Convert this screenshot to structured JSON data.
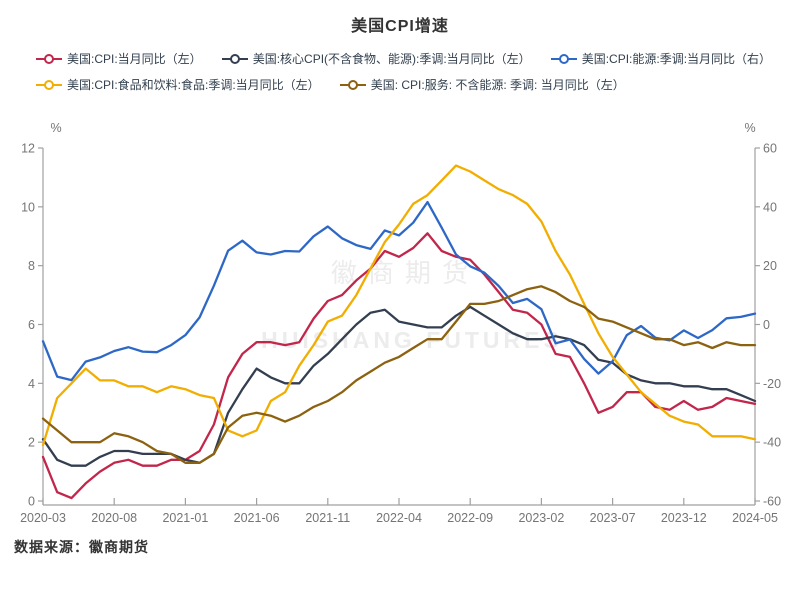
{
  "title": "美国CPI增速",
  "footer": {
    "source_label": "数据来源：徽商期货"
  },
  "watermark": {
    "line1": "徽商期货",
    "line2": "HUISHANG FUTURES"
  },
  "chart_data": {
    "type": "line",
    "title": "美国CPI增速",
    "grid": false,
    "legend_position": "top",
    "x": {
      "categories": [
        "2020-03",
        "2020-04",
        "2020-05",
        "2020-06",
        "2020-07",
        "2020-08",
        "2020-09",
        "2020-10",
        "2020-11",
        "2020-12",
        "2021-01",
        "2021-02",
        "2021-03",
        "2021-04",
        "2021-05",
        "2021-06",
        "2021-07",
        "2021-08",
        "2021-09",
        "2021-10",
        "2021-11",
        "2021-12",
        "2022-01",
        "2022-02",
        "2022-03",
        "2022-04",
        "2022-05",
        "2022-06",
        "2022-07",
        "2022-08",
        "2022-09",
        "2022-10",
        "2022-11",
        "2022-12",
        "2023-01",
        "2023-02",
        "2023-03",
        "2023-04",
        "2023-05",
        "2023-06",
        "2023-07",
        "2023-08",
        "2023-09",
        "2023-10",
        "2023-11",
        "2023-12",
        "2024-01",
        "2024-02",
        "2024-03",
        "2024-04",
        "2024-05"
      ],
      "tick_indices": [
        0,
        5,
        10,
        15,
        20,
        25,
        30,
        35,
        40,
        45,
        50
      ]
    },
    "left_axis": {
      "unit": "%",
      "lim": [
        0,
        12
      ],
      "ticks": [
        0,
        2,
        4,
        6,
        8,
        10,
        12
      ]
    },
    "right_axis": {
      "unit": "%",
      "lim": [
        -60,
        60
      ],
      "ticks": [
        -60,
        -40,
        -20,
        0,
        20,
        40,
        60
      ]
    },
    "series": [
      {
        "name": "美国:CPI:当月同比（左）",
        "axis": "left",
        "color": "#C2264B",
        "values": [
          1.5,
          0.3,
          0.1,
          0.6,
          1.0,
          1.3,
          1.4,
          1.2,
          1.2,
          1.4,
          1.4,
          1.7,
          2.6,
          4.2,
          5.0,
          5.4,
          5.4,
          5.3,
          5.4,
          6.2,
          6.8,
          7.0,
          7.5,
          7.9,
          8.5,
          8.3,
          8.6,
          9.1,
          8.5,
          8.3,
          8.2,
          7.7,
          7.1,
          6.5,
          6.4,
          6.0,
          5.0,
          4.9,
          4.0,
          3.0,
          3.2,
          3.7,
          3.7,
          3.2,
          3.1,
          3.4,
          3.1,
          3.2,
          3.5,
          3.4,
          3.3
        ]
      },
      {
        "name": "美国:核心CPI(不含食物、能源):季调:当月同比（左）",
        "axis": "left",
        "color": "#333F50",
        "values": [
          2.1,
          1.4,
          1.2,
          1.2,
          1.5,
          1.7,
          1.7,
          1.6,
          1.6,
          1.6,
          1.4,
          1.3,
          1.6,
          3.0,
          3.8,
          4.5,
          4.2,
          4.0,
          4.0,
          4.6,
          5.0,
          5.5,
          6.0,
          6.4,
          6.5,
          6.1,
          6.0,
          5.9,
          5.9,
          6.3,
          6.6,
          6.3,
          6.0,
          5.7,
          5.5,
          5.5,
          5.6,
          5.5,
          5.3,
          4.8,
          4.7,
          4.3,
          4.1,
          4.0,
          4.0,
          3.9,
          3.9,
          3.8,
          3.8,
          3.6,
          3.4
        ]
      },
      {
        "name": "美国:CPI:能源:季调:当月同比（右）",
        "axis": "right",
        "color": "#2E68C7",
        "values": [
          -5.7,
          -17.7,
          -18.9,
          -12.6,
          -11.2,
          -9.0,
          -7.7,
          -9.2,
          -9.4,
          -7.0,
          -3.6,
          2.4,
          13.2,
          25.1,
          28.5,
          24.5,
          23.8,
          25.0,
          24.8,
          30.0,
          33.3,
          29.3,
          27.0,
          25.7,
          32.0,
          30.3,
          34.6,
          41.6,
          32.9,
          23.8,
          19.8,
          17.6,
          13.1,
          7.3,
          8.7,
          5.2,
          -6.4,
          -5.1,
          -11.7,
          -16.7,
          -12.5,
          -3.6,
          -0.5,
          -4.5,
          -5.4,
          -2.0,
          -4.6,
          -1.9,
          2.1,
          2.6,
          3.7
        ]
      },
      {
        "name": "美国:CPI:食品和饮料:食品:季调:当月同比（左）",
        "axis": "left",
        "color": "#F2AE00",
        "values": [
          1.9,
          3.5,
          4.0,
          4.5,
          4.1,
          4.1,
          3.9,
          3.9,
          3.7,
          3.9,
          3.8,
          3.6,
          3.5,
          2.4,
          2.2,
          2.4,
          3.4,
          3.7,
          4.6,
          5.3,
          6.1,
          6.3,
          7.0,
          7.9,
          8.8,
          9.4,
          10.1,
          10.4,
          10.9,
          11.4,
          11.2,
          10.9,
          10.6,
          10.4,
          10.1,
          9.5,
          8.5,
          7.7,
          6.7,
          5.7,
          4.9,
          4.3,
          3.7,
          3.3,
          2.9,
          2.7,
          2.6,
          2.2,
          2.2,
          2.2,
          2.1
        ]
      },
      {
        "name": "美国: CPI:服务: 不含能源: 季调: 当月同比（左）",
        "axis": "left",
        "color": "#8C6210",
        "values": [
          2.8,
          2.4,
          2.0,
          2.0,
          2.0,
          2.3,
          2.2,
          2.0,
          1.7,
          1.6,
          1.3,
          1.3,
          1.6,
          2.5,
          2.9,
          3.0,
          2.9,
          2.7,
          2.9,
          3.2,
          3.4,
          3.7,
          4.1,
          4.4,
          4.7,
          4.9,
          5.2,
          5.5,
          5.5,
          6.1,
          6.7,
          6.7,
          6.8,
          7.0,
          7.2,
          7.3,
          7.1,
          6.8,
          6.6,
          6.2,
          6.1,
          5.9,
          5.7,
          5.5,
          5.5,
          5.3,
          5.4,
          5.2,
          5.4,
          5.3,
          5.3
        ]
      }
    ]
  }
}
